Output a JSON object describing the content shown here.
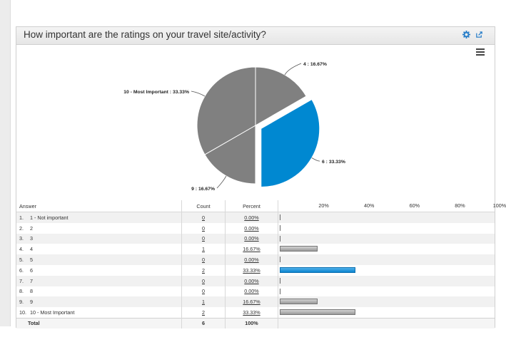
{
  "title": "How important are the ratings on your travel site/activity?",
  "colors": {
    "highlight": "#0088d1",
    "default": "#808080"
  },
  "chart_data": {
    "type": "pie",
    "slices": [
      {
        "label": "4 : 16.67%",
        "value": 16.67,
        "highlighted": false
      },
      {
        "label": "6 : 33.33%",
        "value": 33.33,
        "highlighted": true
      },
      {
        "label": "9 : 16.67%",
        "value": 16.67,
        "highlighted": false
      },
      {
        "label": "10 - Most Important : 33.33%",
        "value": 33.33,
        "highlighted": false
      }
    ]
  },
  "table": {
    "headers": {
      "answer": "Answer",
      "count": "Count",
      "percent": "Percent"
    },
    "axis_ticks": [
      "20%",
      "40%",
      "60%",
      "80%",
      "100%"
    ],
    "rows": [
      {
        "num": "1.",
        "answer": "1 - Not important",
        "count": "0",
        "percent": "0.00%",
        "value": 0,
        "highlighted": false
      },
      {
        "num": "2.",
        "answer": "2",
        "count": "0",
        "percent": "0.00%",
        "value": 0,
        "highlighted": false
      },
      {
        "num": "3.",
        "answer": "3",
        "count": "0",
        "percent": "0.00%",
        "value": 0,
        "highlighted": false
      },
      {
        "num": "4.",
        "answer": "4",
        "count": "1",
        "percent": "16.67%",
        "value": 16.67,
        "highlighted": false
      },
      {
        "num": "5.",
        "answer": "5",
        "count": "0",
        "percent": "0.00%",
        "value": 0,
        "highlighted": false
      },
      {
        "num": "6.",
        "answer": "6",
        "count": "2",
        "percent": "33.33%",
        "value": 33.33,
        "highlighted": true
      },
      {
        "num": "7.",
        "answer": "7",
        "count": "0",
        "percent": "0.00%",
        "value": 0,
        "highlighted": false
      },
      {
        "num": "8.",
        "answer": "8",
        "count": "0",
        "percent": "0.00%",
        "value": 0,
        "highlighted": false
      },
      {
        "num": "9.",
        "answer": "9",
        "count": "1",
        "percent": "16.67%",
        "value": 16.67,
        "highlighted": false
      },
      {
        "num": "10.",
        "answer": "10 - Most Important",
        "count": "2",
        "percent": "33.33%",
        "value": 33.33,
        "highlighted": false
      }
    ],
    "total": {
      "label": "Total",
      "count": "6",
      "percent": "100%"
    }
  }
}
